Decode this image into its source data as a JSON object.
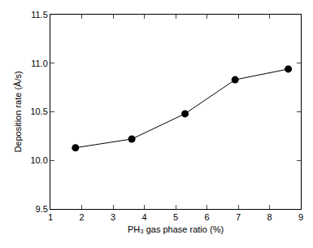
{
  "chart_data": {
    "type": "line",
    "x_label": "PH₃ gas phase ratio (%)",
    "y_label": "Deposition rate (Å/s)",
    "x": [
      1.8,
      3.6,
      5.3,
      6.9,
      8.6
    ],
    "values": [
      10.13,
      10.22,
      10.48,
      10.83,
      10.94
    ],
    "color": "#000000",
    "marker": "circle",
    "line_style": "solid",
    "xlim": [
      1,
      9
    ],
    "xticks": [
      1,
      2,
      3,
      4,
      5,
      6,
      7,
      8,
      9
    ],
    "ylim": [
      9.5,
      11.5
    ],
    "yticks": [
      9.5,
      {
        "value": 10,
        "label": "10.0"
      },
      10.5,
      {
        "value": 11,
        "label": "11.0"
      },
      11.5
    ],
    "grid": false
  }
}
